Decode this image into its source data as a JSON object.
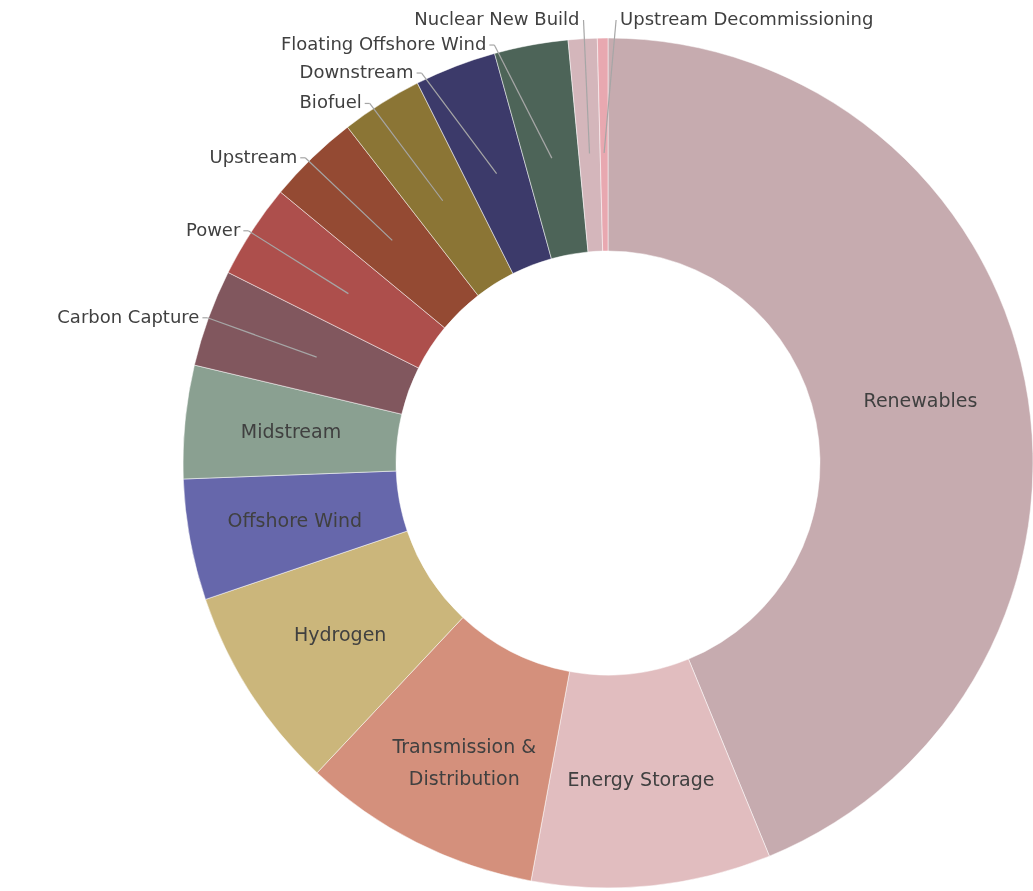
{
  "chart_data": {
    "type": "donut",
    "categories": [
      "Renewables",
      "Energy Storage",
      "Transmission & Distribution",
      "Hydrogen",
      "Offshore Wind",
      "Midstream",
      "Carbon Capture",
      "Power",
      "Upstream",
      "Biofuel",
      "Downstream",
      "Floating Offshore Wind",
      "Nuclear New Build",
      "Upstream Decommissioning"
    ],
    "values": [
      43.8,
      9.1,
      9.1,
      7.8,
      4.6,
      4.3,
      3.7,
      3.6,
      3.5,
      3.1,
      3.1,
      2.8,
      1.1,
      0.4
    ],
    "colors": [
      "#c6abaf",
      "#e1bdbf",
      "#d4907c",
      "#cbb67b",
      "#6667ab",
      "#8aa091",
      "#81575e",
      "#ad4f4c",
      "#944a33",
      "#8b7535",
      "#3c3a6a",
      "#4d6458",
      "#d4b6bb",
      "#e8a8b0"
    ]
  }
}
